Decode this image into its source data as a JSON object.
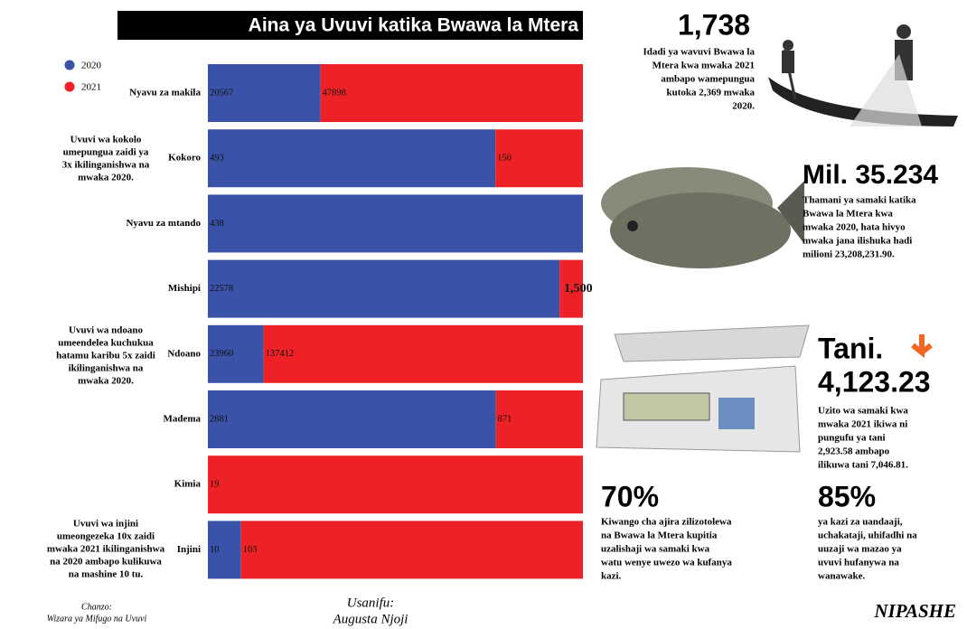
{
  "chart_data": {
    "type": "stacked-bar-100",
    "title": "Aina ya Uvuvi katika Bwawa la Mtera",
    "categories": [
      "Nyavu za makila",
      "Kokoro",
      "Nyavu za mtando",
      "Mishipi",
      "Ndoano",
      "Madema",
      "Kimia",
      "Injini"
    ],
    "series": [
      {
        "name": "2020",
        "color": "#3a52a8",
        "values": [
          20567,
          493,
          438,
          22578,
          23960,
          2881,
          null,
          10
        ],
        "value_labels": [
          "20567",
          "493",
          "438",
          "22578",
          "23960",
          "2881",
          null,
          "10"
        ]
      },
      {
        "name": "2021",
        "color": "#ee2226",
        "values": [
          47898,
          150,
          null,
          1500,
          137412,
          871,
          19,
          103
        ],
        "value_labels": [
          "47898",
          "150",
          null,
          "1,500",
          "137412",
          "871",
          "19",
          "103"
        ]
      }
    ],
    "annotations": [
      [
        "Uvuvi wa kokolo",
        "umepungua zaidi ya",
        "3x ikilinganishwa na",
        "mwaka 2020."
      ],
      [
        "Uvuvi wa ndoano",
        "umeendelea kuchukua",
        "hatamu karibu 5x zaidi",
        "ikilinganishwa na",
        "mwaka 2020."
      ],
      [
        "Uvuvi wa injini",
        "umeongezeka 10x  zaidi",
        "mwaka 2021 ikilinganishwa",
        "na  2020 ambapo kulikuwa",
        "na mashine 10 tu."
      ]
    ]
  },
  "stats": [
    {
      "headline": "1,738",
      "lines": [
        "Idadi ya wavuvi Bwawa la",
        "Mtera kwa mwaka 2021",
        "ambapo wamepungua",
        "kutoka 2,369 mwaka",
        "2020."
      ]
    },
    {
      "headline": "Mil. 35.234",
      "lines": [
        "Thamani ya samaki  katika",
        "Bwawa la Mtera kwa",
        "mwaka 2020, hata hivyo",
        "mwaka jana ilishuka hadi",
        "milioni 23,208,231.90."
      ]
    },
    {
      "headline": "Tani.",
      "subheadline": "4,123.23",
      "lines": [
        "Uzito wa samaki kwa",
        "mwaka 2021 ikiwa ni",
        "pungufu ya tani",
        "2,923.58 ambapo",
        "ilikuwa tani 7,046.81."
      ]
    },
    {
      "headline": "70%",
      "lines": [
        "Kiwango cha ajira zilizotolewa",
        "na Bwawa la Mtera kupitia",
        "uzalishaji wa samaki  kwa",
        "watu wenye uwezo wa kufanya",
        "kazi."
      ]
    },
    {
      "headline": "85%",
      "lines": [
        "ya kazi za uandaaji,",
        "uchakataji, uhifadhi na",
        "uuzaji wa mazao ya",
        "uvuvi hufanywa na",
        "wanawake."
      ]
    }
  ],
  "footer": {
    "source": [
      "Chanzo:",
      "Wizara ya Mifugo na Uvuvi"
    ],
    "designer": [
      "Usanifu:",
      "Augusta Njoji"
    ],
    "brand": "NIPASHE"
  }
}
